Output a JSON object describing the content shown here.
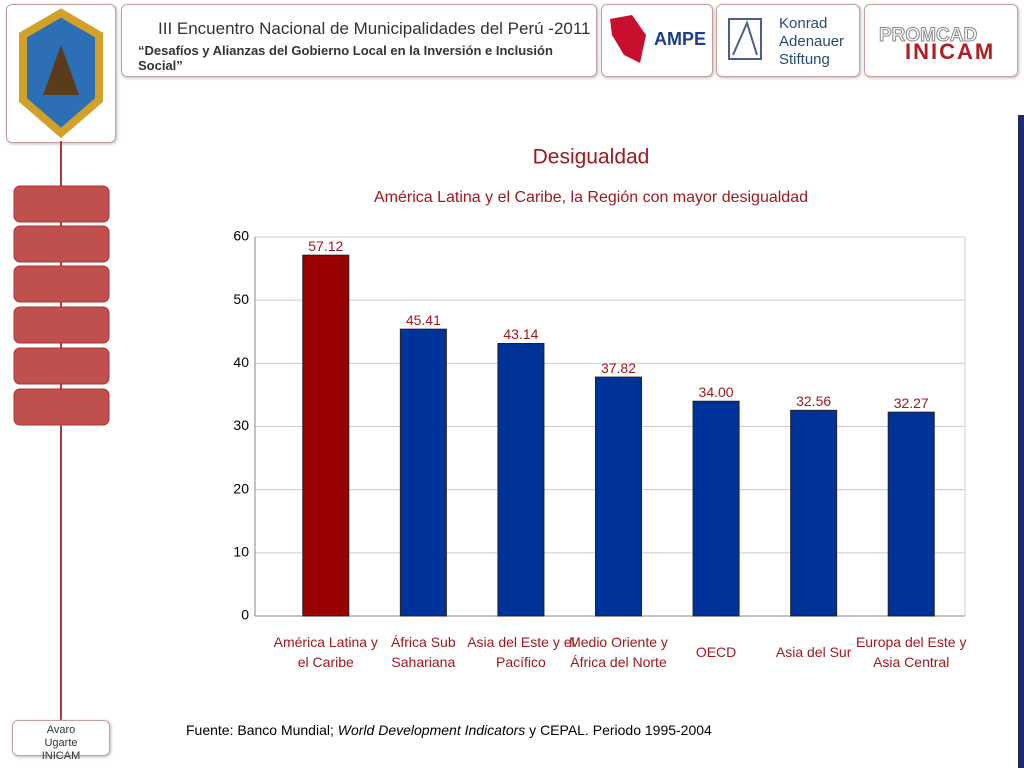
{
  "header": {
    "title": "III Encuentro  Nacional de Municipalidades del Perú -2011",
    "subtitle": "“Desafíos y Alianzas del Gobierno Local en la Inversión e Inclusión Social”",
    "logos": [
      "AMPE",
      "Konrad Adenauer Stiftung",
      "PROMCAD",
      "INICAM"
    ]
  },
  "sidebar": {
    "author": "Avaro Ugarte INICAM"
  },
  "source": [
    "Fuente: Banco Mundial; ",
    "World Development Indicators",
    " y CEPAL. Periodo 1995-2004"
  ],
  "chart_data": {
    "type": "bar",
    "title": "Desigualdad",
    "subtitle": "América Latina y el Caribe, la Región con mayor desigualdad",
    "categories": [
      "América Latina y el Caribe",
      "África Sub Sahariana",
      "Asia del Este y el Pacífico",
      "Medio Oriente y África del Norte",
      "OECD",
      "Asia del Sur",
      "Europa del Este y Asia Central"
    ],
    "values": [
      57.12,
      45.41,
      43.14,
      37.82,
      34.0,
      32.56,
      32.27
    ],
    "value_labels": [
      "57.12",
      "45.41",
      "43.14",
      "37.82",
      "34.00",
      "32.56",
      "32.27"
    ],
    "colors": [
      "#990000",
      "#003399",
      "#003399",
      "#003399",
      "#003399",
      "#003399",
      "#003399"
    ],
    "ylim": [
      0,
      60
    ],
    "yticks": [
      0,
      10,
      20,
      30,
      40,
      50,
      60
    ],
    "grid": true
  }
}
